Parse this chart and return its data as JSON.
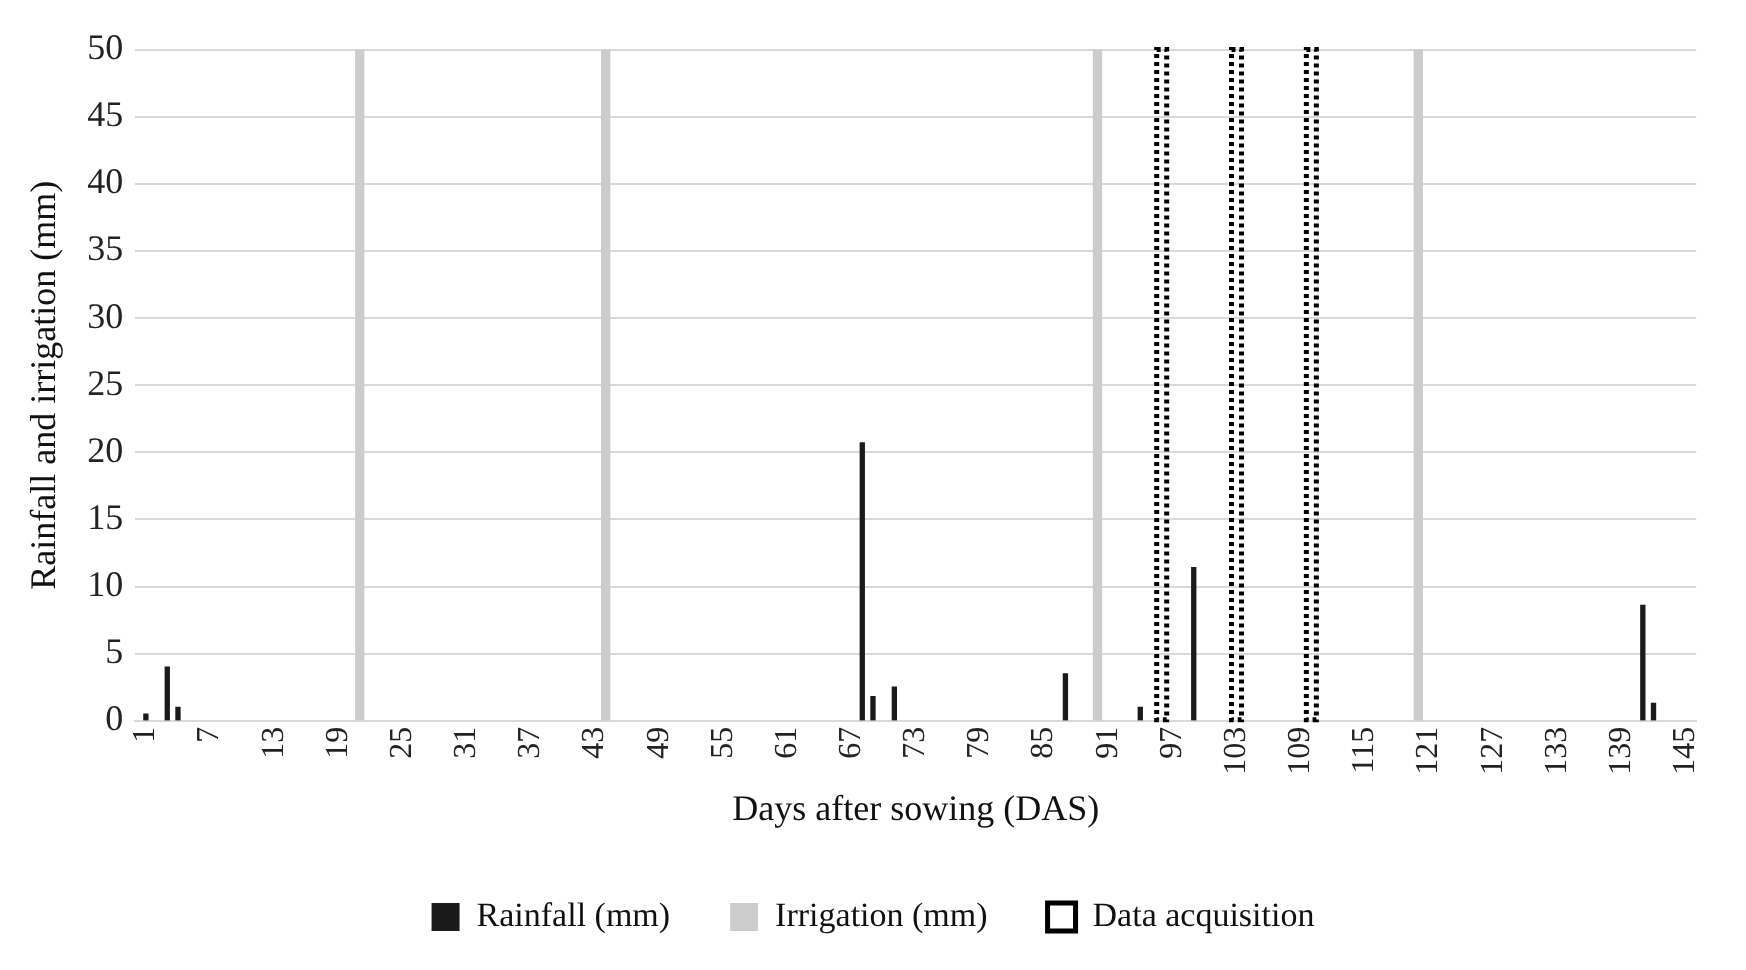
{
  "chart_data": {
    "type": "bar",
    "xlabel": "Days after sowing (DAS)",
    "ylabel": "Rainfall and irrigation (mm)",
    "xlim": [
      0,
      146
    ],
    "xticks": [
      1,
      7,
      13,
      19,
      25,
      31,
      37,
      43,
      49,
      55,
      61,
      67,
      73,
      79,
      85,
      91,
      97,
      103,
      109,
      115,
      121,
      127,
      133,
      139,
      145
    ],
    "ylim": [
      0,
      50
    ],
    "yticks": [
      0,
      5,
      10,
      15,
      20,
      25,
      30,
      35,
      40,
      45,
      50
    ],
    "grid": "y",
    "legend": "bottom",
    "series": [
      {
        "name": "Rainfall (mm)",
        "color": "#1a1a1a",
        "x": [
          1,
          3,
          4,
          68,
          69,
          71,
          87,
          94,
          99,
          141,
          142
        ],
        "values": [
          0.5,
          4,
          1,
          20.7,
          1.8,
          2.5,
          3.5,
          1,
          11.4,
          8.6,
          1.3
        ]
      },
      {
        "name": "Irrigation (mm)",
        "color": "#cccccc",
        "x": [
          21,
          44,
          90,
          120
        ],
        "values": [
          50,
          50,
          50,
          50
        ]
      },
      {
        "name": "Data acquisition",
        "color": "#000000",
        "line_style": "dotted",
        "x": [
          96,
          103,
          110
        ],
        "values": [
          50,
          50,
          50
        ]
      }
    ]
  }
}
